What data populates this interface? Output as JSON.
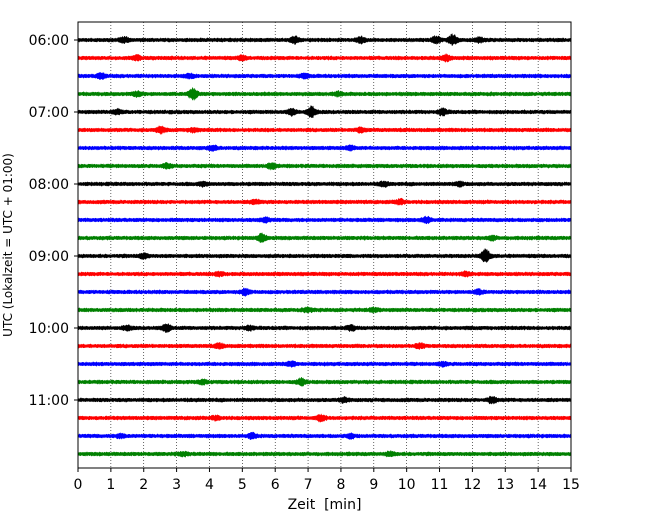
{
  "chart_data": {
    "type": "line",
    "title": "",
    "xlabel": "Zeit  [min]",
    "ylabel": "UTC (Lokalzeit = UTC + 01:00)",
    "xlim": [
      0,
      15
    ],
    "x_ticks": [
      "0",
      "1",
      "2",
      "3",
      "4",
      "5",
      "6",
      "7",
      "8",
      "9",
      "10",
      "11",
      "12",
      "13",
      "14",
      "15"
    ],
    "y_ticks": [
      "06:00",
      "07:00",
      "08:00",
      "09:00",
      "10:00",
      "11:00"
    ],
    "grid": "vertical dotted at each minute",
    "legend": "none",
    "trace_colors": [
      "#000000",
      "#ff0000",
      "#0000ff",
      "#008000"
    ],
    "traces_per_hour": 4,
    "minutes_per_trace": 15,
    "series": [
      {
        "start": "06:00",
        "color": "#000000",
        "events": [
          [
            1.4,
            2.2
          ],
          [
            6.6,
            3.0
          ],
          [
            8.6,
            2.4
          ],
          [
            10.9,
            2.8
          ],
          [
            11.4,
            4.5
          ],
          [
            12.2,
            2.0
          ]
        ]
      },
      {
        "start": "06:15",
        "color": "#ff0000",
        "events": [
          [
            1.8,
            2.0
          ],
          [
            5.0,
            1.8
          ],
          [
            11.2,
            2.6
          ]
        ]
      },
      {
        "start": "06:30",
        "color": "#0000ff",
        "events": [
          [
            0.7,
            2.2
          ],
          [
            3.4,
            1.7
          ],
          [
            6.9,
            1.7
          ]
        ]
      },
      {
        "start": "06:45",
        "color": "#008000",
        "events": [
          [
            1.8,
            2.0
          ],
          [
            3.5,
            5.0
          ],
          [
            7.9,
            1.6
          ]
        ]
      },
      {
        "start": "07:00",
        "color": "#000000",
        "events": [
          [
            1.2,
            2.0
          ],
          [
            6.5,
            2.5
          ],
          [
            7.1,
            4.6
          ],
          [
            11.1,
            2.6
          ]
        ]
      },
      {
        "start": "07:15",
        "color": "#ff0000",
        "events": [
          [
            2.5,
            2.6
          ],
          [
            3.5,
            1.6
          ],
          [
            8.6,
            1.8
          ]
        ]
      },
      {
        "start": "07:30",
        "color": "#0000ff",
        "events": [
          [
            4.1,
            2.0
          ],
          [
            8.3,
            1.7
          ]
        ]
      },
      {
        "start": "07:45",
        "color": "#008000",
        "events": [
          [
            2.7,
            1.8
          ],
          [
            5.9,
            2.5
          ]
        ]
      },
      {
        "start": "08:00",
        "color": "#000000",
        "events": [
          [
            3.8,
            1.6
          ],
          [
            9.3,
            1.8
          ],
          [
            11.6,
            1.7
          ]
        ]
      },
      {
        "start": "08:15",
        "color": "#ff0000",
        "events": [
          [
            5.4,
            1.7
          ],
          [
            9.8,
            2.0
          ]
        ]
      },
      {
        "start": "08:30",
        "color": "#0000ff",
        "events": [
          [
            5.7,
            1.7
          ],
          [
            10.6,
            2.6
          ]
        ]
      },
      {
        "start": "08:45",
        "color": "#008000",
        "events": [
          [
            5.6,
            3.6
          ],
          [
            12.6,
            1.6
          ]
        ]
      },
      {
        "start": "09:00",
        "color": "#000000",
        "events": [
          [
            2.0,
            2.0
          ],
          [
            12.4,
            5.6
          ]
        ]
      },
      {
        "start": "09:15",
        "color": "#ff0000",
        "events": [
          [
            4.3,
            1.7
          ],
          [
            11.8,
            1.8
          ]
        ]
      },
      {
        "start": "09:30",
        "color": "#0000ff",
        "events": [
          [
            5.1,
            2.7
          ],
          [
            12.2,
            1.8
          ]
        ]
      },
      {
        "start": "09:45",
        "color": "#008000",
        "events": [
          [
            7.0,
            1.7
          ],
          [
            9.0,
            1.6
          ]
        ]
      },
      {
        "start": "10:00",
        "color": "#000000",
        "events": [
          [
            1.5,
            1.7
          ],
          [
            2.7,
            3.1
          ],
          [
            5.2,
            1.6
          ],
          [
            8.3,
            2.2
          ]
        ]
      },
      {
        "start": "10:15",
        "color": "#ff0000",
        "events": [
          [
            4.3,
            1.8
          ],
          [
            10.4,
            1.9
          ]
        ]
      },
      {
        "start": "10:30",
        "color": "#0000ff",
        "events": [
          [
            6.5,
            2.0
          ],
          [
            11.1,
            1.6
          ]
        ]
      },
      {
        "start": "10:45",
        "color": "#008000",
        "events": [
          [
            3.8,
            1.7
          ],
          [
            6.8,
            2.7
          ]
        ]
      },
      {
        "start": "11:00",
        "color": "#000000",
        "events": [
          [
            8.1,
            1.8
          ],
          [
            12.6,
            2.8
          ]
        ]
      },
      {
        "start": "11:15",
        "color": "#ff0000",
        "events": [
          [
            4.2,
            1.7
          ],
          [
            7.4,
            2.6
          ]
        ]
      },
      {
        "start": "11:30",
        "color": "#0000ff",
        "events": [
          [
            1.3,
            1.6
          ],
          [
            5.3,
            2.2
          ],
          [
            8.3,
            1.6
          ]
        ]
      },
      {
        "start": "11:45",
        "color": "#008000",
        "events": [
          [
            3.2,
            1.6
          ],
          [
            9.5,
            1.7
          ]
        ]
      }
    ]
  }
}
